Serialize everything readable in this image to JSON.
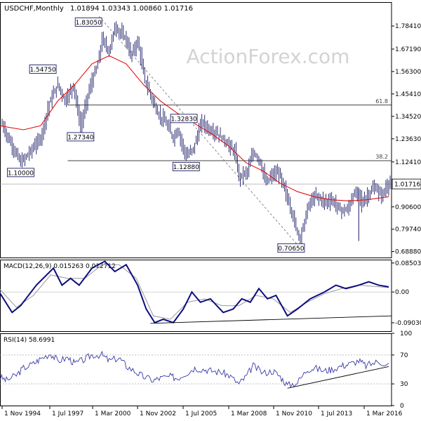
{
  "header": {
    "symbol": "USDCHF,Monthly",
    "ohlc": "1.01894 1.03343 1.00860 1.01716"
  },
  "watermark": "ActionForex.com",
  "colors": {
    "bar": "#1a1a66",
    "ma": "#e01010",
    "macd": "#0d0d80",
    "signal": "#999999",
    "rsi": "#3a3aa8",
    "grid": "#000000",
    "watermark": "#d3d3d3"
  },
  "x_axis": {
    "labels": [
      "1 Nov 1994",
      "1 Jul 1997",
      "1 Mar 2000",
      "1 Nov 2002",
      "1 Jul 2005",
      "1 Mar 2008",
      "1 Nov 2010",
      "1 Jul 2013",
      "1 Mar 2016"
    ]
  },
  "chart_data": [
    {
      "type": "ohlc",
      "title": "USDCHF,Monthly",
      "ylim": [
        0.66,
        1.9
      ],
      "y_ticks": [
        "1.78410",
        "1.67190",
        "1.56300",
        "1.45410",
        "1.34520",
        "1.23630",
        "1.12410",
        "1.01716",
        "0.90600",
        "0.79740",
        "0.68880"
      ],
      "y_tick_values": [
        1.7841,
        1.6719,
        1.563,
        1.4541,
        1.3452,
        1.2363,
        1.1241,
        1.01716,
        0.906,
        0.7974,
        0.6888
      ],
      "last_price": "1.01716",
      "x_dates": [
        "1994-01",
        "1994-07",
        "1995-01",
        "1995-04",
        "1995-10",
        "1996-06",
        "1996-12",
        "1997-06",
        "1997-11",
        "1998-02",
        "1998-05",
        "1998-08",
        "1998-10",
        "1999-03",
        "1999-07",
        "1999-10",
        "2000-01",
        "2000-06",
        "2000-10",
        "2001-06",
        "2001-09",
        "2002-02",
        "2002-07",
        "2002-11",
        "2003-04",
        "2003-09",
        "2004-03",
        "2004-06",
        "2004-12",
        "2005-05",
        "2005-11",
        "2006-04",
        "2006-10",
        "2007-04",
        "2007-10",
        "2008-01",
        "2008-03",
        "2008-07",
        "2008-11",
        "2009-03",
        "2009-08",
        "2009-12",
        "2010-05",
        "2010-09",
        "2011-02",
        "2011-06",
        "2011-08",
        "2012-02",
        "2012-07",
        "2013-01",
        "2013-06",
        "2013-12",
        "2014-05",
        "2014-09",
        "2015-01",
        "2015-03",
        "2015-07",
        "2015-12",
        "2016-05",
        "2016-10"
      ],
      "price_close": [
        1.34,
        1.24,
        1.16,
        1.12,
        1.17,
        1.24,
        1.41,
        1.5,
        1.42,
        1.46,
        1.5,
        1.37,
        1.29,
        1.45,
        1.54,
        1.6,
        1.72,
        1.66,
        1.78,
        1.72,
        1.64,
        1.71,
        1.52,
        1.45,
        1.36,
        1.32,
        1.24,
        1.28,
        1.15,
        1.19,
        1.32,
        1.28,
        1.26,
        1.22,
        1.17,
        1.05,
        1.06,
        1.08,
        1.17,
        1.14,
        1.02,
        1.06,
        1.07,
        0.99,
        0.88,
        0.78,
        0.76,
        0.92,
        0.96,
        0.93,
        0.94,
        0.89,
        0.89,
        0.96,
        0.98,
        0.92,
        0.96,
        1.0,
        0.96,
        1.02
      ],
      "ma": [
        {
          "x": "1994-01",
          "y": 1.3
        },
        {
          "x": "1995-06",
          "y": 1.28
        },
        {
          "x": "1996-06",
          "y": 1.3
        },
        {
          "x": "1997-06",
          "y": 1.42
        },
        {
          "x": "1998-06",
          "y": 1.5
        },
        {
          "x": "1999-06",
          "y": 1.6
        },
        {
          "x": "2000-06",
          "y": 1.64
        },
        {
          "x": "2001-06",
          "y": 1.6
        },
        {
          "x": "2002-06",
          "y": 1.5
        },
        {
          "x": "2003-06",
          "y": 1.42
        },
        {
          "x": "2004-06",
          "y": 1.36
        },
        {
          "x": "2005-06",
          "y": 1.31
        },
        {
          "x": "2006-06",
          "y": 1.26
        },
        {
          "x": "2007-06",
          "y": 1.2
        },
        {
          "x": "2008-06",
          "y": 1.12
        },
        {
          "x": "2009-06",
          "y": 1.08
        },
        {
          "x": "2010-06",
          "y": 1.02
        },
        {
          "x": "2011-06",
          "y": 0.98
        },
        {
          "x": "2012-06",
          "y": 0.955
        },
        {
          "x": "2013-06",
          "y": 0.94
        },
        {
          "x": "2014-06",
          "y": 0.935
        },
        {
          "x": "2015-06",
          "y": 0.94
        },
        {
          "x": "2016-10",
          "y": 0.955
        }
      ],
      "annotations": [
        {
          "text": "1.83050",
          "x": "1999-10",
          "y": 1.8305
        },
        {
          "text": "1.54750",
          "x": "1996-12",
          "y": 1.5475
        },
        {
          "text": "1.27340",
          "x": "1998-10",
          "y": 1.2734
        },
        {
          "text": "1.10000",
          "x": "1995-04",
          "y": 1.1
        },
        {
          "text": "1.32830",
          "x": "2004-06",
          "y": 1.3283
        },
        {
          "text": "1.12880",
          "x": "2004-12",
          "y": 1.1288
        },
        {
          "text": "0.70650",
          "x": "2011-08",
          "y": 0.7065
        }
      ],
      "fib_levels": [
        {
          "label": "61.8",
          "y": 1.4
        },
        {
          "label": "38.2",
          "y": 1.13
        }
      ]
    },
    {
      "type": "line",
      "title": "MACD(12,26,9) 0.015263 0.012712",
      "ylim": [
        -0.115,
        0.095
      ],
      "y_ticks": [
        "0.085032",
        "0.00",
        "-0.090302"
      ],
      "y_tick_values": [
        0.085032,
        0.0,
        -0.090302
      ],
      "macd": [
        {
          "x": "1994-01",
          "y": 0.0
        },
        {
          "x": "1994-10",
          "y": -0.06
        },
        {
          "x": "1995-04",
          "y": -0.04
        },
        {
          "x": "1996-03",
          "y": 0.02
        },
        {
          "x": "1997-03",
          "y": 0.07
        },
        {
          "x": "1997-09",
          "y": 0.02
        },
        {
          "x": "1998-03",
          "y": 0.04
        },
        {
          "x": "1998-09",
          "y": 0.02
        },
        {
          "x": "1999-06",
          "y": 0.07
        },
        {
          "x": "2000-03",
          "y": 0.09
        },
        {
          "x": "2000-10",
          "y": 0.06
        },
        {
          "x": "2001-06",
          "y": 0.08
        },
        {
          "x": "2002-02",
          "y": 0.02
        },
        {
          "x": "2002-08",
          "y": -0.05
        },
        {
          "x": "2003-02",
          "y": -0.09
        },
        {
          "x": "2003-08",
          "y": -0.08
        },
        {
          "x": "2004-03",
          "y": -0.09
        },
        {
          "x": "2004-10",
          "y": -0.05
        },
        {
          "x": "2005-04",
          "y": 0.0
        },
        {
          "x": "2005-10",
          "y": -0.03
        },
        {
          "x": "2006-05",
          "y": -0.02
        },
        {
          "x": "2007-02",
          "y": -0.06
        },
        {
          "x": "2007-09",
          "y": -0.05
        },
        {
          "x": "2008-03",
          "y": -0.02
        },
        {
          "x": "2008-09",
          "y": -0.03
        },
        {
          "x": "2009-03",
          "y": 0.01
        },
        {
          "x": "2009-09",
          "y": -0.02
        },
        {
          "x": "2010-03",
          "y": -0.01
        },
        {
          "x": "2010-11",
          "y": -0.07
        },
        {
          "x": "2011-06",
          "y": -0.05
        },
        {
          "x": "2012-03",
          "y": -0.02
        },
        {
          "x": "2013-01",
          "y": 0.0
        },
        {
          "x": "2013-09",
          "y": 0.02
        },
        {
          "x": "2014-04",
          "y": 0.01
        },
        {
          "x": "2015-01",
          "y": 0.02
        },
        {
          "x": "2015-08",
          "y": 0.03
        },
        {
          "x": "2016-03",
          "y": 0.02
        },
        {
          "x": "2016-10",
          "y": 0.015
        }
      ],
      "signal": [
        {
          "x": "1994-01",
          "y": 0.01
        },
        {
          "x": "1995-01",
          "y": -0.045
        },
        {
          "x": "1996-01",
          "y": -0.01
        },
        {
          "x": "1997-01",
          "y": 0.05
        },
        {
          "x": "1998-01",
          "y": 0.04
        },
        {
          "x": "1999-01",
          "y": 0.04
        },
        {
          "x": "2000-01",
          "y": 0.08
        },
        {
          "x": "2001-01",
          "y": 0.08
        },
        {
          "x": "2002-01",
          "y": 0.04
        },
        {
          "x": "2003-01",
          "y": -0.07
        },
        {
          "x": "2004-01",
          "y": -0.08
        },
        {
          "x": "2005-01",
          "y": -0.03
        },
        {
          "x": "2006-01",
          "y": -0.02
        },
        {
          "x": "2007-01",
          "y": -0.04
        },
        {
          "x": "2008-01",
          "y": -0.04
        },
        {
          "x": "2009-01",
          "y": -0.01
        },
        {
          "x": "2010-01",
          "y": -0.02
        },
        {
          "x": "2011-01",
          "y": -0.06
        },
        {
          "x": "2012-01",
          "y": -0.03
        },
        {
          "x": "2013-01",
          "y": -0.005
        },
        {
          "x": "2014-01",
          "y": 0.01
        },
        {
          "x": "2015-01",
          "y": 0.02
        },
        {
          "x": "2016-10",
          "y": 0.013
        }
      ]
    },
    {
      "type": "line",
      "title": "RSI(14) 58.6991",
      "ylim": [
        0,
        100
      ],
      "y_ticks": [
        "100",
        "70",
        "30",
        "0"
      ],
      "y_tick_values": [
        100,
        70,
        30,
        0
      ],
      "rsi": [
        {
          "x": "1994-01",
          "y": 40
        },
        {
          "x": "1994-06",
          "y": 35
        },
        {
          "x": "1995-01",
          "y": 42
        },
        {
          "x": "1995-06",
          "y": 52
        },
        {
          "x": "1996-01",
          "y": 58
        },
        {
          "x": "1996-06",
          "y": 65
        },
        {
          "x": "1997-01",
          "y": 72
        },
        {
          "x": "1997-06",
          "y": 62
        },
        {
          "x": "1998-01",
          "y": 66
        },
        {
          "x": "1998-06",
          "y": 58
        },
        {
          "x": "1999-01",
          "y": 64
        },
        {
          "x": "1999-06",
          "y": 70
        },
        {
          "x": "2000-01",
          "y": 70
        },
        {
          "x": "2000-06",
          "y": 62
        },
        {
          "x": "2001-01",
          "y": 66
        },
        {
          "x": "2001-06",
          "y": 55
        },
        {
          "x": "2002-01",
          "y": 46
        },
        {
          "x": "2002-06",
          "y": 40
        },
        {
          "x": "2003-01",
          "y": 35
        },
        {
          "x": "2003-06",
          "y": 38
        },
        {
          "x": "2004-01",
          "y": 40
        },
        {
          "x": "2004-06",
          "y": 38
        },
        {
          "x": "2005-01",
          "y": 46
        },
        {
          "x": "2005-06",
          "y": 52
        },
        {
          "x": "2006-01",
          "y": 50
        },
        {
          "x": "2006-06",
          "y": 48
        },
        {
          "x": "2007-01",
          "y": 46
        },
        {
          "x": "2007-06",
          "y": 42
        },
        {
          "x": "2008-01",
          "y": 30
        },
        {
          "x": "2008-06",
          "y": 40
        },
        {
          "x": "2008-11",
          "y": 55
        },
        {
          "x": "2009-06",
          "y": 45
        },
        {
          "x": "2010-01",
          "y": 48
        },
        {
          "x": "2010-06",
          "y": 40
        },
        {
          "x": "2010-11",
          "y": 28
        },
        {
          "x": "2011-06",
          "y": 32
        },
        {
          "x": "2012-01",
          "y": 50
        },
        {
          "x": "2012-06",
          "y": 52
        },
        {
          "x": "2013-01",
          "y": 48
        },
        {
          "x": "2013-06",
          "y": 50
        },
        {
          "x": "2014-01",
          "y": 55
        },
        {
          "x": "2014-06",
          "y": 57
        },
        {
          "x": "2015-01",
          "y": 62
        },
        {
          "x": "2015-06",
          "y": 55
        },
        {
          "x": "2016-01",
          "y": 60
        },
        {
          "x": "2016-10",
          "y": 58.7
        }
      ],
      "trendline": [
        {
          "x": "2010-11",
          "y": 24
        },
        {
          "x": "2016-10",
          "y": 54
        }
      ]
    }
  ]
}
